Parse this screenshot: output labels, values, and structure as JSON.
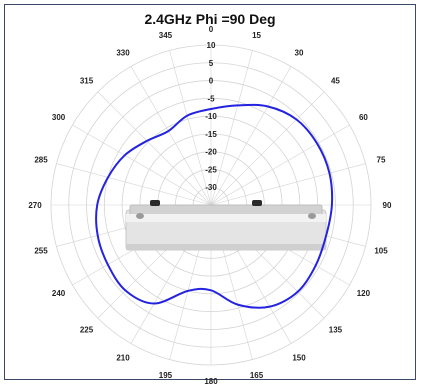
{
  "chart_data": {
    "type": "polar-line",
    "title": "2.4GHz Phi =90 Deg",
    "angle_direction": "clockwise",
    "angle_zero": "top",
    "angle_labels": [
      "0",
      "15",
      "30",
      "45",
      "60",
      "75",
      "90",
      "105",
      "120",
      "135",
      "150",
      "165",
      "180",
      "195",
      "210",
      "225",
      "240",
      "255",
      "270",
      "285",
      "300",
      "315",
      "330",
      "345"
    ],
    "radial_min": -35,
    "radial_max": 10,
    "radial_ticks": [
      10,
      5,
      0,
      -5,
      -10,
      -15,
      -20,
      -25,
      -30
    ],
    "radial_tick_labels": [
      "10",
      "5",
      "0",
      "-5",
      "-10",
      "-15",
      "-20",
      "-25",
      "-30"
    ],
    "grid": true,
    "series": [
      {
        "color": "#2323e0",
        "theta": [
          0,
          15,
          30,
          45,
          60,
          75,
          90,
          105,
          120,
          135,
          150,
          165,
          180,
          195,
          210,
          225,
          240,
          255,
          270,
          285,
          300,
          315,
          330,
          345
        ],
        "r": [
          -8,
          -6,
          -3,
          -1,
          -0.5,
          -0.5,
          -1,
          -1.5,
          -1,
          -0.5,
          -2,
          -6,
          -11,
          -10,
          -3,
          -1,
          -1.5,
          -2,
          -3,
          -5,
          -7,
          -9.5,
          -11,
          -9
        ]
      }
    ],
    "colors": {
      "curve": "#2323e0",
      "grid": "#d4d4d4",
      "device": "#dcdcdc"
    }
  }
}
